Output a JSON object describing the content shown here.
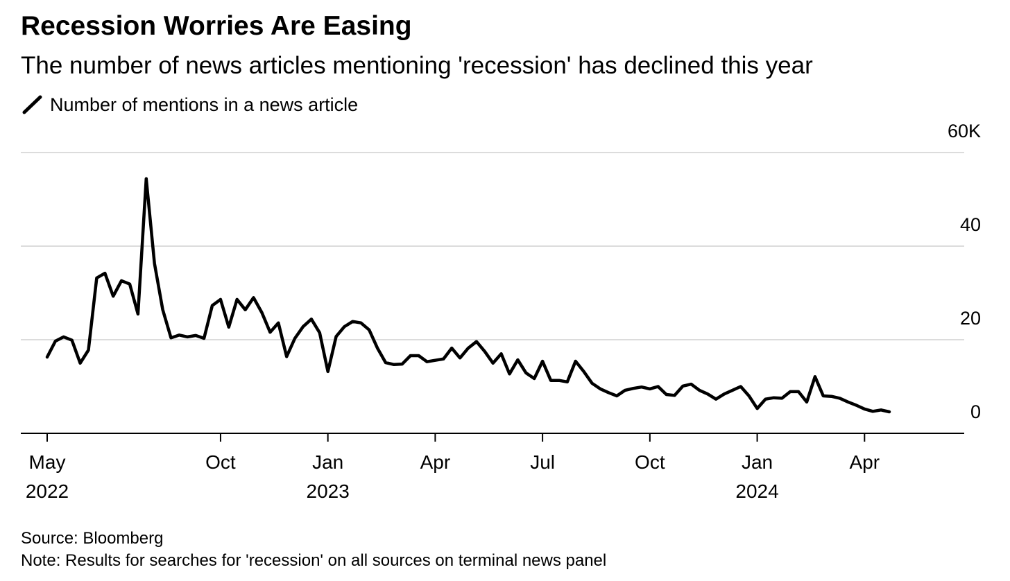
{
  "chart_data": {
    "type": "line",
    "title": "Recession Worries Are Easing",
    "subtitle": "The number of news articles mentioning 'recession' has declined this year",
    "source": "Source: Bloomberg",
    "note": "Note: Results for searches for 'recession' on all sources on terminal news panel",
    "categories": [
      "May 2022",
      null,
      null,
      null,
      null,
      null,
      null,
      null,
      null,
      null,
      null,
      null,
      null,
      null,
      null,
      null,
      null,
      null,
      null,
      null,
      null,
      "Oct",
      null,
      null,
      null,
      null,
      null,
      null,
      null,
      null,
      null,
      null,
      null,
      null,
      "Jan 2023",
      null,
      null,
      null,
      null,
      null,
      null,
      null,
      null,
      null,
      null,
      null,
      null,
      "Apr",
      null,
      null,
      null,
      null,
      null,
      null,
      null,
      null,
      null,
      null,
      null,
      null,
      "Jul",
      null,
      null,
      null,
      null,
      null,
      null,
      null,
      null,
      null,
      null,
      null,
      null,
      "Oct",
      null,
      null,
      null,
      null,
      null,
      null,
      null,
      null,
      null,
      null,
      null,
      null,
      "Jan 2024",
      null,
      null,
      null,
      null,
      null,
      null,
      null,
      null,
      null,
      null,
      null,
      null,
      "Apr",
      null,
      null,
      null
    ],
    "series": [
      {
        "name": "Number of mentions in a news article",
        "color": "#000000",
        "values": [
          16.3,
          19.7,
          20.6,
          19.9,
          15,
          17.8,
          33.2,
          34.2,
          29.3,
          32.6,
          31.9,
          25.5,
          54.4,
          36.3,
          26.4,
          20.4,
          21,
          20.6,
          20.9,
          20.3,
          27.3,
          28.6,
          22.7,
          28.6,
          26.4,
          29,
          25.8,
          21.6,
          23.6,
          16.4,
          20.3,
          22.8,
          24.4,
          21.5,
          13.2,
          20.7,
          22.8,
          23.9,
          23.6,
          22.1,
          18.2,
          15.1,
          14.7,
          14.8,
          16.6,
          16.6,
          15.3,
          15.6,
          15.9,
          18.2,
          16.1,
          18.2,
          19.6,
          17.5,
          15,
          17,
          12.7,
          15.7,
          12.9,
          11.7,
          15.4,
          11.3,
          11.3,
          11,
          15.4,
          13.2,
          10.7,
          9.5,
          8.7,
          8,
          9.2,
          9.6,
          9.9,
          9.5,
          10,
          8.3,
          8.1,
          10.1,
          10.5,
          9.2,
          8.4,
          7.3,
          8.4,
          9.2,
          10,
          8,
          5.3,
          7.3,
          7.6,
          7.5,
          8.9,
          8.9,
          6.7,
          12.1,
          8,
          7.9,
          7.5,
          6.7,
          6,
          5.2,
          4.7,
          5,
          4.6
        ]
      }
    ],
    "ylim": [
      0,
      60
    ],
    "yticks": [
      0,
      20,
      40,
      {
        "value": 60,
        "label": "60K"
      }
    ],
    "grid": true
  }
}
